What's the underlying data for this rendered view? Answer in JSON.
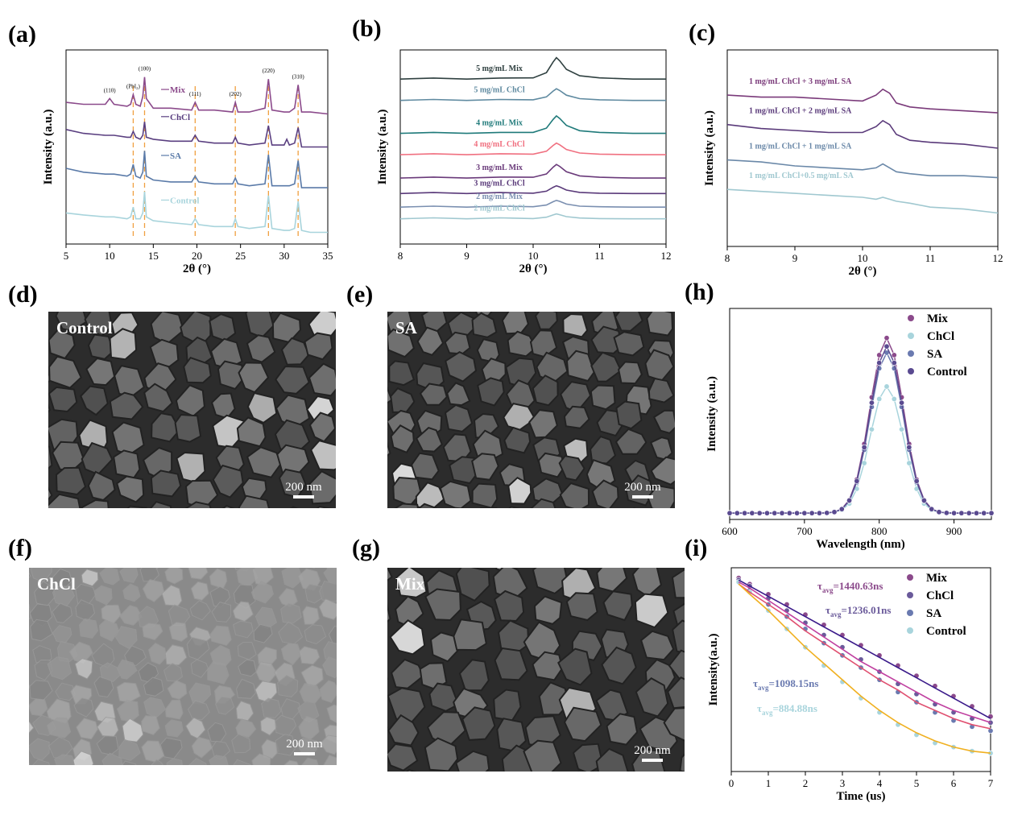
{
  "chart_data": [
    {
      "label": "(a)",
      "type": "line",
      "xlabel": "2θ (°)",
      "ylabel": "Intensity (a.u.)",
      "xlim": [
        5,
        35
      ],
      "xticks": [
        5,
        10,
        15,
        20,
        25,
        30,
        35
      ],
      "ylim": [
        0,
        10
      ],
      "x": [
        5,
        7,
        9.5,
        10,
        10.5,
        12,
        12.4,
        12.7,
        13.0,
        13.5,
        13.8,
        14,
        14.2,
        15,
        17,
        19.4,
        19.8,
        20.2,
        22,
        24.1,
        24.4,
        24.7,
        26,
        27.8,
        28.2,
        28.6,
        30,
        30.3,
        30.6,
        31.2,
        31.6,
        32,
        33,
        35
      ],
      "series": [
        {
          "name": "Mix",
          "color": "#8b4a8b",
          "values": [
            7.3,
            7.2,
            7.2,
            7.5,
            7.2,
            7.1,
            7.2,
            7.7,
            7.2,
            7.1,
            7.6,
            8.6,
            7.5,
            7.0,
            7.0,
            6.9,
            7.3,
            6.9,
            6.9,
            6.8,
            7.3,
            6.8,
            6.8,
            7.0,
            8.5,
            6.9,
            6.8,
            6.8,
            6.8,
            7.0,
            8.2,
            6.8,
            6.8,
            6.7
          ]
        },
        {
          "name": "ChCl",
          "color": "#5a3f80",
          "values": [
            5.9,
            5.7,
            5.6,
            5.6,
            5.6,
            5.5,
            5.5,
            5.8,
            5.5,
            5.4,
            5.6,
            6.3,
            5.5,
            5.4,
            5.3,
            5.3,
            5.6,
            5.3,
            5.2,
            5.2,
            5.5,
            5.2,
            5.1,
            5.2,
            6.1,
            5.1,
            5.1,
            5.4,
            5.1,
            5.2,
            6.0,
            5.0,
            5.0,
            5.0
          ]
        },
        {
          "name": "SA",
          "color": "#5a7aa8",
          "values": [
            3.9,
            3.7,
            3.6,
            3.6,
            3.6,
            3.5,
            3.6,
            4.1,
            3.5,
            3.4,
            3.7,
            4.8,
            3.5,
            3.3,
            3.2,
            3.2,
            3.5,
            3.2,
            3.1,
            3.1,
            3.4,
            3.1,
            3.0,
            3.1,
            4.6,
            3.0,
            3.0,
            3.0,
            3.0,
            3.1,
            4.3,
            2.9,
            2.9,
            2.9
          ]
        },
        {
          "name": "Control",
          "color": "#a8d4dc",
          "values": [
            1.6,
            1.5,
            1.4,
            1.4,
            1.4,
            1.3,
            1.4,
            1.9,
            1.3,
            1.3,
            1.6,
            2.7,
            1.4,
            1.2,
            1.1,
            1.0,
            1.3,
            1.0,
            0.9,
            0.9,
            1.3,
            0.9,
            0.8,
            0.9,
            2.5,
            0.8,
            0.7,
            0.7,
            0.7,
            0.8,
            2.2,
            0.7,
            0.6,
            0.6
          ]
        }
      ],
      "dashed_lines": [
        12.7,
        14,
        19.8,
        24.4,
        28.2,
        31.6
      ],
      "annotations": [
        {
          "text": "(110)",
          "x": 10
        },
        {
          "text": "(PbI₂)",
          "x": 12.7
        },
        {
          "text": "(100)",
          "x": 14
        },
        {
          "text": "(111)",
          "x": 19.8
        },
        {
          "text": "(202)",
          "x": 24.4
        },
        {
          "text": "(220)",
          "x": 28.2
        },
        {
          "text": "(310)",
          "x": 31.6
        }
      ]
    },
    {
      "label": "(b)",
      "type": "line",
      "xlabel": "2θ (°)",
      "ylabel": "Intensity (a.u.)",
      "xlim": [
        8,
        12
      ],
      "xticks": [
        8,
        9,
        10,
        11,
        12
      ],
      "ylim": [
        0,
        10
      ],
      "x": [
        8,
        8.5,
        9,
        9.5,
        10,
        10.2,
        10.3,
        10.35,
        10.4,
        10.5,
        10.7,
        11,
        11.5,
        12
      ],
      "series": [
        {
          "name": "5 mg/mL Mix",
          "color": "#2f4040",
          "values": [
            8.5,
            8.55,
            8.5,
            8.55,
            8.56,
            8.83,
            9.38,
            9.6,
            9.44,
            9.0,
            8.67,
            8.56,
            8.5,
            8.5
          ]
        },
        {
          "name": "5 mg/mL ChCl",
          "color": "#5f8aa0",
          "values": [
            7.4,
            7.45,
            7.4,
            7.45,
            7.43,
            7.58,
            7.88,
            8.0,
            7.91,
            7.67,
            7.49,
            7.43,
            7.4,
            7.4
          ]
        },
        {
          "name": "4 mg/mL Mix",
          "color": "#1f7a7a",
          "values": [
            5.7,
            5.75,
            5.7,
            5.75,
            5.75,
            5.97,
            6.42,
            6.6,
            6.47,
            6.11,
            5.84,
            5.75,
            5.7,
            5.7
          ]
        },
        {
          "name": "4 mg/mL ChCl",
          "color": "#f07080",
          "values": [
            4.6,
            4.65,
            4.6,
            4.65,
            4.63,
            4.78,
            5.08,
            5.2,
            5.11,
            4.87,
            4.69,
            4.63,
            4.6,
            4.6
          ]
        },
        {
          "name": "3 mg/mL Mix",
          "color": "#6a3a7a",
          "values": [
            3.4,
            3.45,
            3.4,
            3.45,
            3.44,
            3.61,
            3.96,
            4.1,
            4.0,
            3.72,
            3.51,
            3.44,
            3.4,
            3.4
          ]
        },
        {
          "name": "3 mg/mL ChCl",
          "color": "#5a3a7a",
          "values": [
            2.6,
            2.65,
            2.6,
            2.65,
            2.62,
            2.72,
            2.92,
            3.0,
            2.94,
            2.78,
            2.66,
            2.62,
            2.6,
            2.6
          ]
        },
        {
          "name": "2 mg/mL Mix",
          "color": "#7a8fb0",
          "values": [
            1.9,
            1.95,
            1.9,
            1.95,
            1.92,
            2.01,
            2.18,
            2.25,
            2.2,
            2.06,
            1.95,
            1.92,
            1.9,
            1.9
          ]
        },
        {
          "name": "2 mg/mL ChCl",
          "color": "#a0c8d0",
          "values": [
            1.3,
            1.35,
            1.3,
            1.35,
            1.31,
            1.38,
            1.5,
            1.55,
            1.51,
            1.41,
            1.34,
            1.31,
            1.3,
            1.3
          ]
        }
      ]
    },
    {
      "label": "(c)",
      "type": "line",
      "xlabel": "2θ (°)",
      "ylabel": "Intensity (a.u.)",
      "xlim": [
        8,
        12
      ],
      "xticks": [
        8,
        9,
        10,
        11,
        12
      ],
      "ylim": [
        0,
        10
      ],
      "x": [
        8,
        8.5,
        9,
        9.5,
        10,
        10.2,
        10.3,
        10.4,
        10.5,
        10.7,
        11,
        11.5,
        12
      ],
      "series": [
        {
          "name": "1 mg/mL ChCl + 3 mg/mL SA",
          "color": "#7a3a7a",
          "values": [
            7.7,
            7.6,
            7.6,
            7.5,
            7.4,
            7.7,
            8.0,
            7.8,
            7.3,
            7.1,
            7.0,
            6.9,
            6.8
          ]
        },
        {
          "name": "1 mg/mL ChCl + 2 mg/mL SA",
          "color": "#5a3a7a",
          "values": [
            6.2,
            6.0,
            5.9,
            5.8,
            5.8,
            6.1,
            6.4,
            6.2,
            5.7,
            5.4,
            5.3,
            5.2,
            5.0
          ]
        },
        {
          "name": "1 mg/mL ChCl + 1 mg/mL SA",
          "color": "#6a88a8",
          "values": [
            4.4,
            4.3,
            4.1,
            4.0,
            3.9,
            4.0,
            4.2,
            4.0,
            3.8,
            3.7,
            3.6,
            3.6,
            3.5
          ]
        },
        {
          "name": "1 mg/mL ChCl+0.5 mg/mL SA",
          "color": "#a0c8d0",
          "values": [
            2.9,
            2.8,
            2.7,
            2.6,
            2.5,
            2.4,
            2.5,
            2.4,
            2.3,
            2.2,
            2.0,
            1.9,
            1.7
          ]
        }
      ]
    },
    {
      "label": "(h)",
      "type": "scatter",
      "xlabel": "Wavelength (nm)",
      "ylabel": "Intensity (a.u.)",
      "xlim": [
        600,
        950
      ],
      "xticks": [
        600,
        700,
        800,
        900
      ],
      "ylim": [
        0,
        1
      ],
      "legend": "top-right",
      "x": [
        600,
        610,
        620,
        630,
        640,
        650,
        660,
        670,
        680,
        690,
        700,
        710,
        720,
        730,
        740,
        750,
        760,
        770,
        780,
        790,
        800,
        810,
        820,
        830,
        840,
        850,
        860,
        870,
        880,
        890,
        900,
        910,
        920,
        930,
        940,
        950
      ],
      "series": [
        {
          "name": "Mix",
          "color": "#8b4a8b",
          "values": [
            0.03,
            0.03,
            0.03,
            0.03,
            0.03,
            0.03,
            0.03,
            0.03,
            0.03,
            0.03,
            0.03,
            0.03,
            0.03,
            0.031,
            0.035,
            0.05,
            0.093,
            0.189,
            0.358,
            0.579,
            0.779,
            0.86,
            0.779,
            0.579,
            0.358,
            0.189,
            0.093,
            0.05,
            0.035,
            0.031,
            0.03,
            0.03,
            0.03,
            0.03,
            0.03,
            0.03
          ]
        },
        {
          "name": "ChCl",
          "color": "#a8d4dc",
          "values": [
            0.03,
            0.03,
            0.03,
            0.03,
            0.03,
            0.03,
            0.03,
            0.03,
            0.03,
            0.03,
            0.03,
            0.03,
            0.03,
            0.031,
            0.034,
            0.045,
            0.075,
            0.145,
            0.267,
            0.427,
            0.571,
            0.63,
            0.571,
            0.427,
            0.267,
            0.145,
            0.075,
            0.045,
            0.034,
            0.031,
            0.03,
            0.03,
            0.03,
            0.03,
            0.03,
            0.03
          ]
        },
        {
          "name": "SA",
          "color": "#6a7ab0",
          "values": [
            0.03,
            0.03,
            0.03,
            0.03,
            0.03,
            0.03,
            0.03,
            0.03,
            0.03,
            0.03,
            0.03,
            0.03,
            0.03,
            0.031,
            0.035,
            0.049,
            0.087,
            0.176,
            0.33,
            0.533,
            0.716,
            0.79,
            0.716,
            0.533,
            0.33,
            0.176,
            0.087,
            0.049,
            0.035,
            0.031,
            0.03,
            0.03,
            0.03,
            0.03,
            0.03,
            0.03
          ]
        },
        {
          "name": "Control",
          "color": "#5a4a90",
          "values": [
            0.03,
            0.03,
            0.03,
            0.03,
            0.03,
            0.03,
            0.03,
            0.03,
            0.03,
            0.03,
            0.03,
            0.03,
            0.03,
            0.031,
            0.035,
            0.049,
            0.09,
            0.182,
            0.342,
            0.553,
            0.742,
            0.82,
            0.742,
            0.553,
            0.342,
            0.182,
            0.09,
            0.049,
            0.035,
            0.031,
            0.03,
            0.03,
            0.03,
            0.03,
            0.03,
            0.03
          ]
        }
      ]
    },
    {
      "label": "(i)",
      "type": "scatter",
      "xlabel": "Time (us)",
      "ylabel": "Intensity(a.u.)",
      "xlim": [
        0,
        7
      ],
      "xticks": [
        0,
        1,
        2,
        3,
        4,
        5,
        6,
        7
      ],
      "ylim": [
        0,
        10
      ],
      "legend": "top-right",
      "x": [
        0.2,
        0.5,
        1,
        1.5,
        2,
        2.5,
        3,
        3.5,
        4,
        4.5,
        5,
        5.5,
        6,
        6.5,
        7
      ],
      "series": [
        {
          "name": "Mix",
          "color": "#8b4a8b",
          "fit_color": "#3a1a8a",
          "values": [
            9.5,
            9.2,
            8.7,
            8.2,
            7.7,
            7.2,
            6.7,
            6.2,
            5.7,
            5.2,
            4.7,
            4.2,
            3.7,
            3.2,
            2.7
          ],
          "fit": [
            9.4,
            9.1,
            8.6,
            8.1,
            7.6,
            7.1,
            6.6,
            6.1,
            5.6,
            5.1,
            4.6,
            4.1,
            3.6,
            3.1,
            2.6
          ]
        },
        {
          "name": "ChCl",
          "color": "#6a5a9a",
          "fit_color": "#c040a0",
          "values": [
            9.4,
            9.1,
            8.5,
            7.9,
            7.3,
            6.7,
            6.1,
            5.5,
            4.9,
            4.3,
            3.8,
            3.3,
            2.9,
            2.6,
            2.4
          ],
          "fit": [
            9.3,
            9.0,
            8.4,
            7.8,
            7.2,
            6.6,
            6.0,
            5.4,
            4.9,
            4.4,
            3.9,
            3.4,
            3.0,
            2.7,
            2.4
          ]
        },
        {
          "name": "SA",
          "color": "#6a7ab0",
          "fit_color": "#e05070",
          "values": [
            9.3,
            8.9,
            8.2,
            7.6,
            7.0,
            6.3,
            5.7,
            5.1,
            4.5,
            3.9,
            3.4,
            2.9,
            2.5,
            2.2,
            2.0
          ],
          "fit": [
            9.2,
            8.8,
            8.2,
            7.6,
            6.9,
            6.3,
            5.7,
            5.1,
            4.5,
            4.0,
            3.4,
            3.0,
            2.6,
            2.3,
            2.1
          ]
        },
        {
          "name": "Control",
          "color": "#a8d4dc",
          "fit_color": "#f0b020",
          "values": [
            9.3,
            8.8,
            7.9,
            7.0,
            6.1,
            5.2,
            4.4,
            3.6,
            2.9,
            2.3,
            1.8,
            1.4,
            1.2,
            1.0,
            0.9
          ],
          "fit": [
            9.2,
            8.7,
            7.9,
            7.0,
            6.1,
            5.3,
            4.5,
            3.7,
            3.0,
            2.4,
            1.9,
            1.5,
            1.2,
            1.0,
            0.9
          ]
        }
      ],
      "annotations": [
        {
          "symbol": "τ",
          "sub": "avg",
          "text": "=1440.63ns",
          "color": "#8b4a8b"
        },
        {
          "symbol": "τ",
          "sub": "avg",
          "text": "=1236.01ns",
          "color": "#6a5a9a"
        },
        {
          "symbol": "τ",
          "sub": "avg",
          "text": "=1098.15ns",
          "color": "#6a7ab0"
        },
        {
          "symbol": "τ",
          "sub": "avg",
          "text": "=884.88ns",
          "color": "#a8d4dc"
        }
      ]
    }
  ],
  "images": [
    {
      "label": "(d)",
      "caption": "Control",
      "scale_bar": "200 nm"
    },
    {
      "label": "(e)",
      "caption": "SA",
      "scale_bar": "200 nm"
    },
    {
      "label": "(f)",
      "caption": "ChCl",
      "scale_bar": "200 nm"
    },
    {
      "label": "(g)",
      "caption": "Mix",
      "scale_bar": "200 nm"
    }
  ]
}
